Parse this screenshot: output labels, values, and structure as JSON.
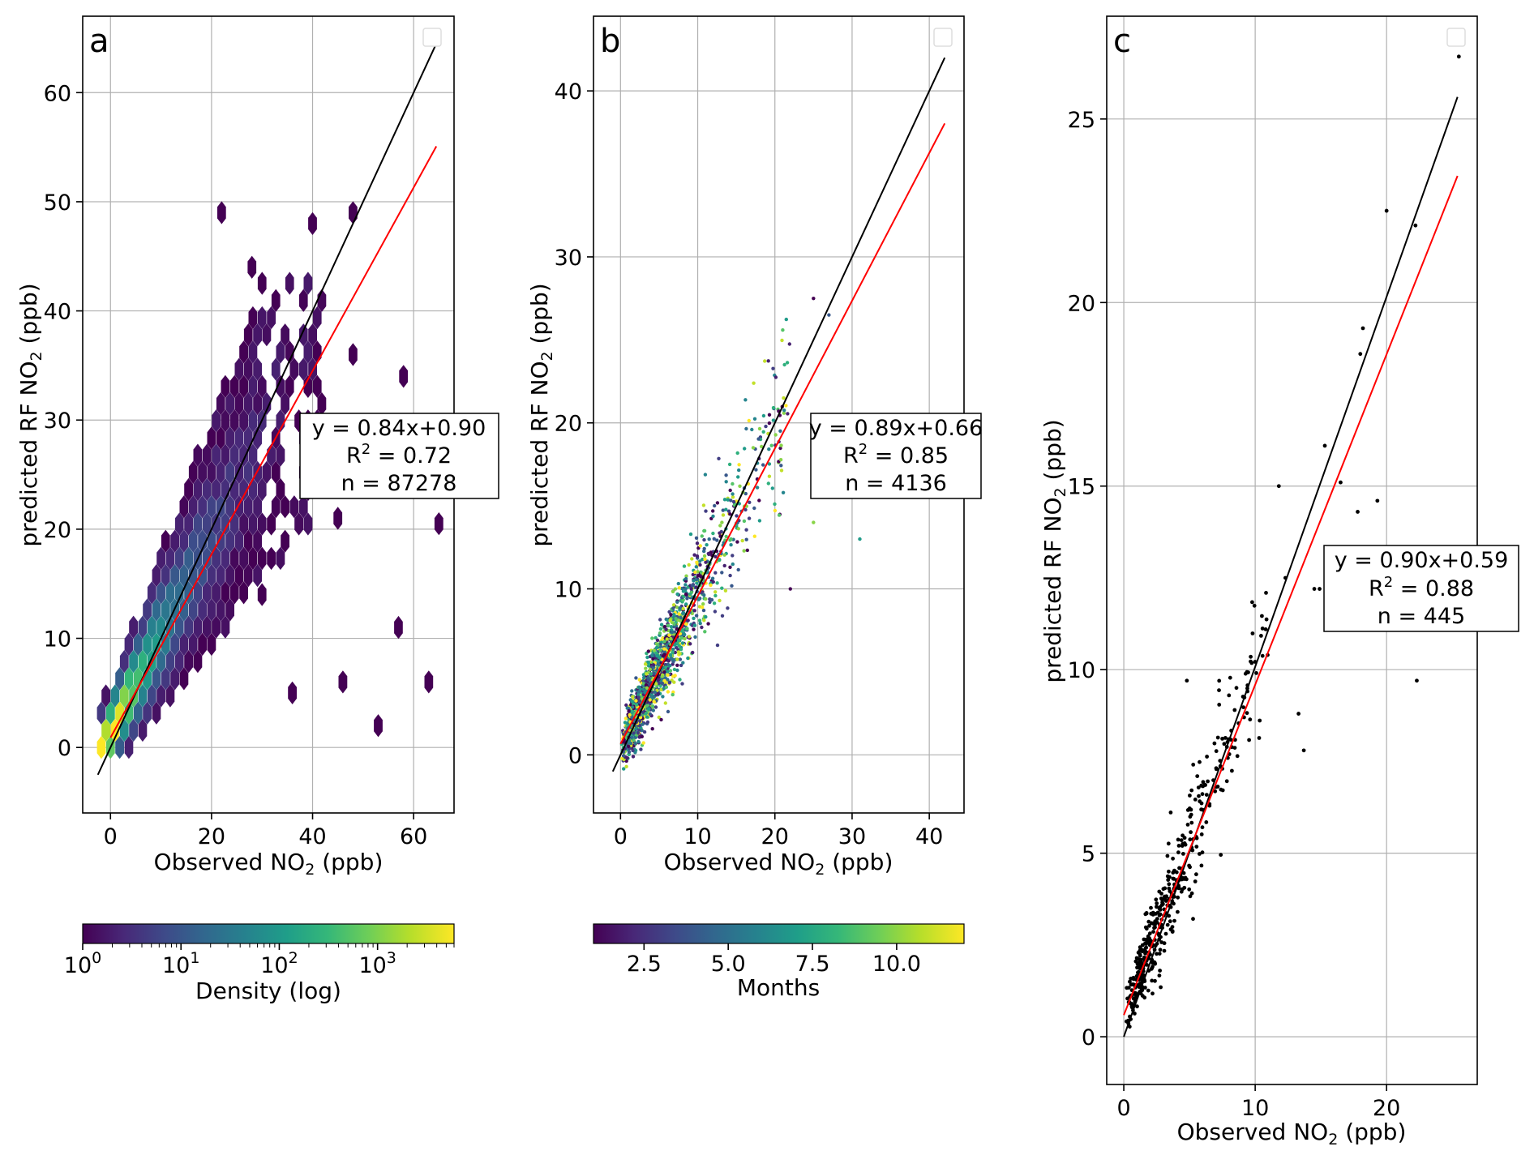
{
  "figure": {
    "panels": [
      {
        "letter": "a",
        "ylabel_pre": "predicted RF NO",
        "ylabel_sub": "2",
        "ylabel_post": " (ppb)",
        "xlabel_pre": "Observed NO",
        "xlabel_sub": "2",
        "xlabel_post": " (ppb)",
        "stats": {
          "line1": "y = 0.84x+0.90",
          "r2_pre": "R",
          "r2_sup": "2",
          "r2_post": " = 0.72",
          "n": "n = 87278"
        },
        "colorbar": {
          "label": "Density (log)",
          "ticks": [
            {
              "base": "10",
              "exp": "0"
            },
            {
              "base": "10",
              "exp": "1"
            },
            {
              "base": "10",
              "exp": "2"
            },
            {
              "base": "10",
              "exp": "3"
            }
          ]
        }
      },
      {
        "letter": "b",
        "ylabel_pre": "predicted RF NO",
        "ylabel_sub": "2",
        "ylabel_post": " (ppb)",
        "xlabel_pre": "Observed NO",
        "xlabel_sub": "2",
        "xlabel_post": " (ppb)",
        "stats": {
          "line1": "y = 0.89x+0.66",
          "r2_pre": "R",
          "r2_sup": "2",
          "r2_post": " = 0.85",
          "n": "n = 4136"
        },
        "colorbar": {
          "label": "Months",
          "ticks": [
            "2.5",
            "5.0",
            "7.5",
            "10.0"
          ]
        }
      },
      {
        "letter": "c",
        "ylabel_pre": "predicted RF NO",
        "ylabel_sub": "2",
        "ylabel_post": " (ppb)",
        "xlabel_pre": "Observed NO",
        "xlabel_sub": "2",
        "xlabel_post": " (ppb)",
        "stats": {
          "line1": "y = 0.90x+0.59",
          "r2_pre": "R",
          "r2_sup": "2",
          "r2_post": " = 0.88",
          "n": "n = 445"
        }
      }
    ]
  },
  "colors": {
    "identity_line": "#000000",
    "fit_line": "#ff0000",
    "points_c": "#000000",
    "grid": "#b0b0b0"
  },
  "chart_data": [
    {
      "type": "scatter",
      "subtype": "hexbin",
      "title": "a",
      "xlabel": "Observed NO2 (ppb)",
      "ylabel": "predicted RF NO2 (ppb)",
      "xlim": [
        -5.5,
        68
      ],
      "ylim": [
        -6,
        67
      ],
      "xticks": [
        0,
        20,
        40,
        60
      ],
      "yticks": [
        0,
        10,
        20,
        30,
        40,
        50,
        60
      ],
      "grid": true,
      "identity_line": {
        "x": [
          -2.5,
          64.5
        ],
        "y": [
          -2.5,
          64.5
        ]
      },
      "fit_line": {
        "slope": 0.84,
        "intercept": 0.9,
        "x": [
          0,
          64.5
        ]
      },
      "fit": {
        "slope": 0.84,
        "intercept": 0.9,
        "r2": 0.72,
        "n": 87278
      },
      "density_scale": "log",
      "density_range": [
        1,
        6000
      ],
      "outlier_hexes": [
        [
          22,
          49
        ],
        [
          40,
          48
        ],
        [
          48,
          49
        ],
        [
          28,
          44
        ],
        [
          58,
          34
        ],
        [
          63,
          6
        ],
        [
          53,
          2
        ],
        [
          46,
          6
        ],
        [
          57,
          11
        ],
        [
          36,
          5
        ],
        [
          30,
          14
        ],
        [
          45,
          21
        ],
        [
          65,
          20.5
        ],
        [
          48,
          36
        ]
      ]
    },
    {
      "type": "scatter",
      "title": "b",
      "xlabel": "Observed NO2 (ppb)",
      "ylabel": "predicted RF NO2 (ppb)",
      "xlim": [
        -3.5,
        44.5
      ],
      "ylim": [
        -3.5,
        44.5
      ],
      "xticks": [
        0,
        10,
        20,
        30,
        40
      ],
      "yticks": [
        0,
        10,
        20,
        30,
        40
      ],
      "grid": true,
      "color_by": "Months",
      "color_range": [
        1,
        12
      ],
      "identity_line": {
        "x": [
          -1,
          42
        ],
        "y": [
          -1,
          42
        ]
      },
      "fit_line": {
        "slope": 0.89,
        "intercept": 0.66,
        "x": [
          0,
          42
        ]
      },
      "fit": {
        "slope": 0.89,
        "intercept": 0.66,
        "r2": 0.85,
        "n": 4136
      },
      "notable_points": [
        [
          25,
          27.5
        ],
        [
          27,
          26.5
        ],
        [
          31,
          13
        ],
        [
          25,
          14
        ],
        [
          22,
          10
        ]
      ]
    },
    {
      "type": "scatter",
      "title": "c",
      "xlabel": "Observed NO2 (ppb)",
      "ylabel": "predicted RF NO2 (ppb)",
      "xlim": [
        -1.3,
        26.9
      ],
      "ylim": [
        -1.3,
        27.8
      ],
      "xticks": [
        0,
        10,
        20
      ],
      "yticks": [
        0,
        5,
        10,
        15,
        20,
        25
      ],
      "grid": true,
      "identity_line": {
        "x": [
          0,
          25.4
        ],
        "y": [
          0,
          25.6
        ]
      },
      "fit_line": {
        "slope": 0.9,
        "intercept": 0.59,
        "x": [
          0,
          25.4
        ]
      },
      "fit": {
        "slope": 0.9,
        "intercept": 0.59,
        "r2": 0.88,
        "n": 445
      },
      "notable_points": [
        [
          25.5,
          26.7
        ],
        [
          20,
          22.5
        ],
        [
          22.2,
          22.1
        ],
        [
          22.3,
          9.7
        ],
        [
          11.8,
          15
        ],
        [
          15.3,
          16.1
        ],
        [
          16.5,
          15.1
        ],
        [
          18,
          18.6
        ],
        [
          18.2,
          19.3
        ],
        [
          19.3,
          14.6
        ],
        [
          17.8,
          14.3
        ],
        [
          13.3,
          8.8
        ],
        [
          13.7,
          7.8
        ],
        [
          12.3,
          12.5
        ],
        [
          4.8,
          9.7
        ],
        [
          14.5,
          12.2
        ],
        [
          14.9,
          12.2
        ]
      ]
    }
  ]
}
